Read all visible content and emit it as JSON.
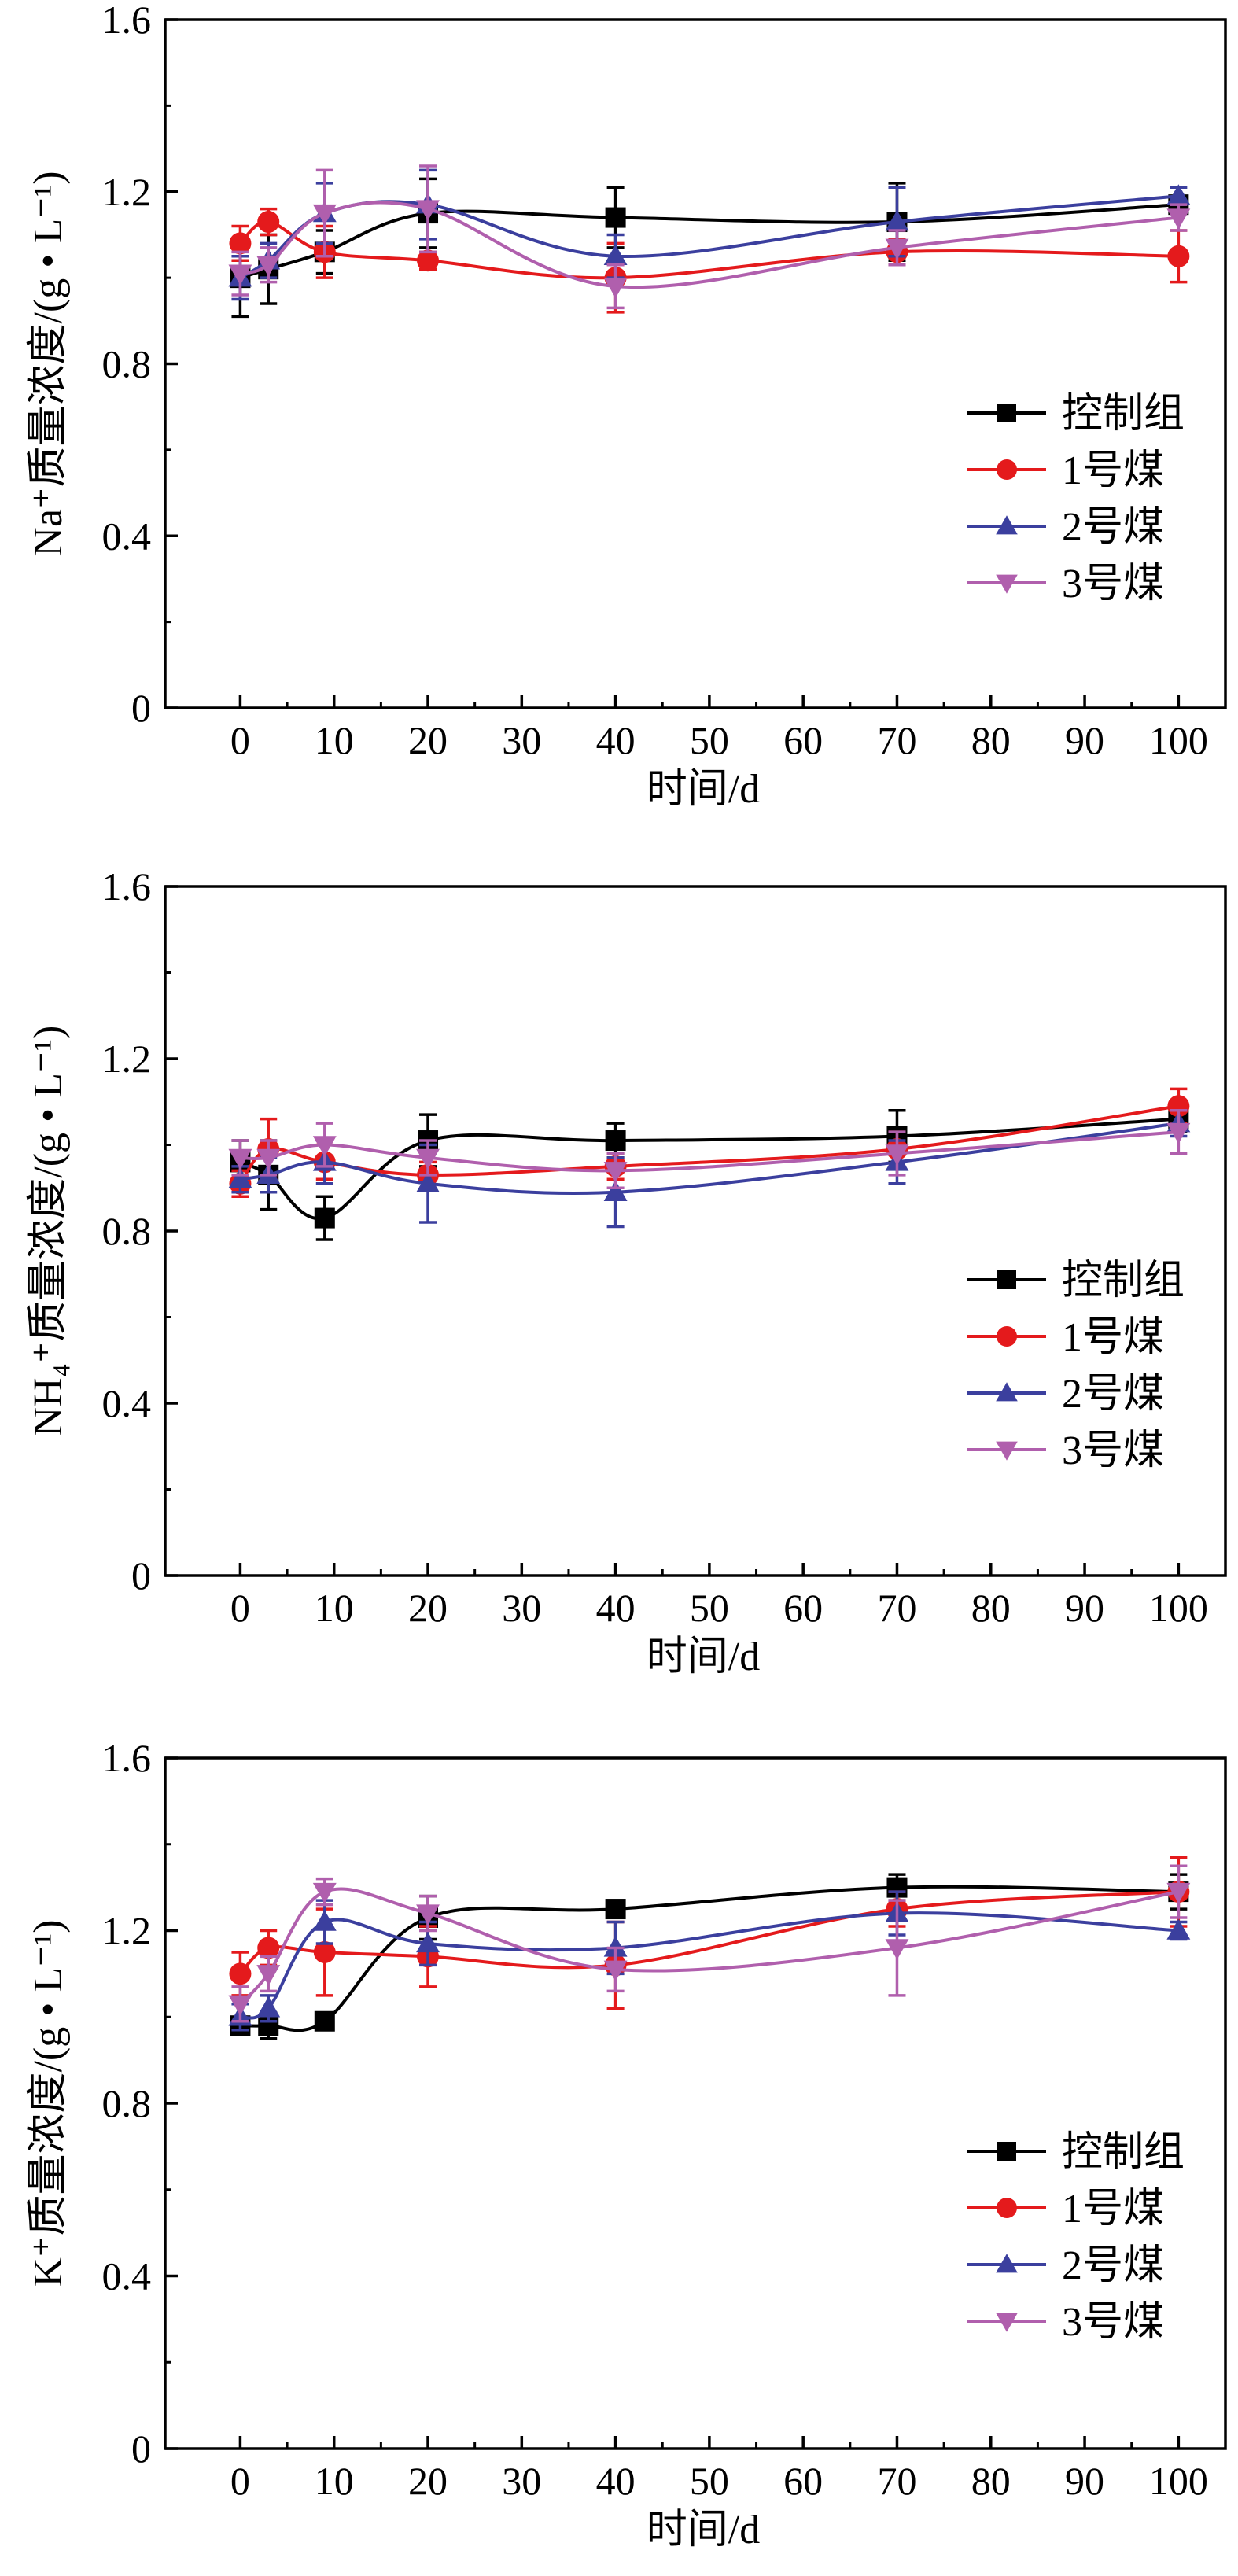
{
  "chart_data": [
    {
      "type": "line",
      "xlabel": "时间/d",
      "ylabel": "Na⁺质量浓度/(g • L⁻¹)",
      "xlim": [
        -8,
        105
      ],
      "ylim": [
        0,
        1.6
      ],
      "xticks": [
        0,
        10,
        20,
        30,
        40,
        50,
        60,
        70,
        80,
        90,
        100
      ],
      "yticks": [
        0,
        0.4,
        0.8,
        1.2,
        1.6
      ],
      "ytick_labels": [
        "0",
        "0.4",
        "0.8",
        "1.2",
        "1.6"
      ],
      "legend_position": "right",
      "series": [
        {
          "name": "控制组",
          "color": "#000000",
          "marker": "square",
          "x": [
            0,
            3,
            9,
            20,
            40,
            70,
            100
          ],
          "y": [
            1.0,
            1.02,
            1.06,
            1.15,
            1.14,
            1.13,
            1.17
          ],
          "err": [
            0.09,
            0.08,
            0.05,
            0.08,
            0.07,
            0.09,
            0.02
          ]
        },
        {
          "name": "1号煤",
          "color": "#e41a1c",
          "marker": "circle",
          "x": [
            0,
            3,
            9,
            20,
            40,
            70,
            100
          ],
          "y": [
            1.08,
            1.13,
            1.06,
            1.04,
            1.0,
            1.06,
            1.05
          ],
          "err": [
            0.04,
            0.03,
            0.06,
            0.02,
            0.08,
            0.03,
            0.06
          ]
        },
        {
          "name": "2号煤",
          "color": "#3b3f9e",
          "marker": "triangle-up",
          "x": [
            0,
            3,
            9,
            20,
            40,
            70,
            100
          ],
          "y": [
            1.0,
            1.04,
            1.15,
            1.17,
            1.05,
            1.13,
            1.19
          ],
          "err": [
            0.05,
            0.04,
            0.07,
            0.08,
            0.05,
            0.08,
            0.02
          ]
        },
        {
          "name": "3号煤",
          "color": "#b05fad",
          "marker": "triangle-down",
          "x": [
            0,
            3,
            9,
            20,
            40,
            70,
            100
          ],
          "y": [
            1.01,
            1.03,
            1.15,
            1.16,
            0.98,
            1.07,
            1.14
          ],
          "err": [
            0.05,
            0.04,
            0.1,
            0.1,
            0.05,
            0.04,
            0.03
          ]
        }
      ]
    },
    {
      "type": "line",
      "xlabel": "时间/d",
      "ylabel": "NH₄⁺质量浓度/(g • L⁻¹)",
      "xlim": [
        -8,
        105
      ],
      "ylim": [
        0,
        1.6
      ],
      "xticks": [
        0,
        10,
        20,
        30,
        40,
        50,
        60,
        70,
        80,
        90,
        100
      ],
      "yticks": [
        0,
        0.4,
        0.8,
        1.2,
        1.6
      ],
      "ytick_labels": [
        "0",
        "0.4",
        "0.8",
        "1.2",
        "1.6"
      ],
      "legend_position": "right",
      "series": [
        {
          "name": "控制组",
          "color": "#000000",
          "marker": "square",
          "x": [
            0,
            3,
            9,
            20,
            40,
            70,
            100
          ],
          "y": [
            0.96,
            0.93,
            0.83,
            1.01,
            1.01,
            1.02,
            1.06
          ],
          "err": [
            0.05,
            0.08,
            0.05,
            0.06,
            0.04,
            0.06,
            0.03
          ]
        },
        {
          "name": "1号煤",
          "color": "#e41a1c",
          "marker": "circle",
          "x": [
            0,
            3,
            9,
            20,
            40,
            70,
            100
          ],
          "y": [
            0.91,
            0.99,
            0.96,
            0.93,
            0.95,
            0.99,
            1.09
          ],
          "err": [
            0.03,
            0.07,
            0.04,
            0.03,
            0.03,
            0.04,
            0.04
          ]
        },
        {
          "name": "2号煤",
          "color": "#3b3f9e",
          "marker": "triangle-up",
          "x": [
            0,
            3,
            9,
            20,
            40,
            70,
            100
          ],
          "y": [
            0.92,
            0.93,
            0.96,
            0.91,
            0.89,
            0.96,
            1.05
          ],
          "err": [
            0.03,
            0.04,
            0.05,
            0.09,
            0.08,
            0.05,
            0.03
          ]
        },
        {
          "name": "3号煤",
          "color": "#b05fad",
          "marker": "triangle-down",
          "x": [
            0,
            3,
            9,
            20,
            40,
            70,
            100
          ],
          "y": [
            0.97,
            0.97,
            1.0,
            0.97,
            0.94,
            0.98,
            1.03
          ],
          "err": [
            0.04,
            0.04,
            0.05,
            0.04,
            0.04,
            0.05,
            0.05
          ]
        }
      ]
    },
    {
      "type": "line",
      "xlabel": "时间/d",
      "ylabel": "K⁺质量浓度/(g • L⁻¹)",
      "xlim": [
        -8,
        105
      ],
      "ylim": [
        0,
        1.6
      ],
      "xticks": [
        0,
        10,
        20,
        30,
        40,
        50,
        60,
        70,
        80,
        90,
        100
      ],
      "yticks": [
        0,
        0.4,
        0.8,
        1.2,
        1.6
      ],
      "ytick_labels": [
        "0",
        "0.4",
        "0.8",
        "1.2",
        "1.6"
      ],
      "legend_position": "right",
      "series": [
        {
          "name": "控制组",
          "color": "#000000",
          "marker": "square",
          "x": [
            0,
            3,
            9,
            20,
            40,
            70,
            100
          ],
          "y": [
            0.98,
            0.98,
            0.99,
            1.23,
            1.25,
            1.3,
            1.29
          ],
          "err": [
            0.02,
            0.03,
            0.01,
            0.05,
            0.01,
            0.03,
            0.04
          ]
        },
        {
          "name": "1号煤",
          "color": "#e41a1c",
          "marker": "circle",
          "x": [
            0,
            3,
            9,
            20,
            40,
            70,
            100
          ],
          "y": [
            1.1,
            1.16,
            1.15,
            1.14,
            1.12,
            1.25,
            1.29
          ],
          "err": [
            0.05,
            0.04,
            0.1,
            0.07,
            0.1,
            0.04,
            0.08
          ]
        },
        {
          "name": "2号煤",
          "color": "#3b3f9e",
          "marker": "triangle-up",
          "x": [
            0,
            3,
            9,
            20,
            40,
            70,
            100
          ],
          "y": [
            1.0,
            1.02,
            1.22,
            1.17,
            1.16,
            1.24,
            1.2
          ],
          "err": [
            0.03,
            0.03,
            0.05,
            0.05,
            0.06,
            0.05,
            0.02
          ]
        },
        {
          "name": "3号煤",
          "color": "#b05fad",
          "marker": "triangle-down",
          "x": [
            0,
            3,
            9,
            20,
            40,
            70,
            100
          ],
          "y": [
            1.03,
            1.1,
            1.29,
            1.24,
            1.11,
            1.16,
            1.29
          ],
          "err": [
            0.04,
            0.04,
            0.03,
            0.04,
            0.05,
            0.11,
            0.06
          ]
        }
      ]
    }
  ]
}
